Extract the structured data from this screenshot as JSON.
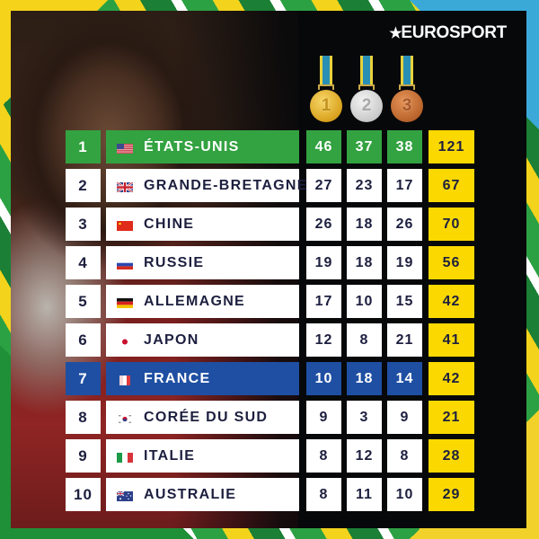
{
  "brand": {
    "logo_text": "EUROSPORT",
    "logo_icon": "star-icon"
  },
  "colors": {
    "leader_highlight": "#33a241",
    "france_highlight": "#1f4fa2",
    "total_column": "#fbd900",
    "text_dark": "#1d1f3f",
    "panel_bg": "#07080a"
  },
  "medals_header": [
    {
      "label": "1",
      "type": "gold"
    },
    {
      "label": "2",
      "type": "silver"
    },
    {
      "label": "3",
      "type": "bronze"
    }
  ],
  "standings": [
    {
      "rank": "1",
      "country": "ÉTATS-UNIS",
      "flag": "usa-flag-icon",
      "gold": "46",
      "silver": "37",
      "bronze": "38",
      "total": "121",
      "highlight": "green"
    },
    {
      "rank": "2",
      "country": "GRANDE-BRETAGNE",
      "flag": "uk-flag-icon",
      "gold": "27",
      "silver": "23",
      "bronze": "17",
      "total": "67",
      "highlight": ""
    },
    {
      "rank": "3",
      "country": "CHINE",
      "flag": "china-flag-icon",
      "gold": "26",
      "silver": "18",
      "bronze": "26",
      "total": "70",
      "highlight": ""
    },
    {
      "rank": "4",
      "country": "RUSSIE",
      "flag": "russia-flag-icon",
      "gold": "19",
      "silver": "18",
      "bronze": "19",
      "total": "56",
      "highlight": ""
    },
    {
      "rank": "5",
      "country": "ALLEMAGNE",
      "flag": "germany-flag-icon",
      "gold": "17",
      "silver": "10",
      "bronze": "15",
      "total": "42",
      "highlight": ""
    },
    {
      "rank": "6",
      "country": "JAPON",
      "flag": "japan-flag-icon",
      "gold": "12",
      "silver": "8",
      "bronze": "21",
      "total": "41",
      "highlight": ""
    },
    {
      "rank": "7",
      "country": "FRANCE",
      "flag": "france-flag-icon",
      "gold": "10",
      "silver": "18",
      "bronze": "14",
      "total": "42",
      "highlight": "blue"
    },
    {
      "rank": "8",
      "country": "CORÉE DU SUD",
      "flag": "south-korea-flag-icon",
      "gold": "9",
      "silver": "3",
      "bronze": "9",
      "total": "21",
      "highlight": ""
    },
    {
      "rank": "9",
      "country": "ITALIE",
      "flag": "italy-flag-icon",
      "gold": "8",
      "silver": "12",
      "bronze": "8",
      "total": "28",
      "highlight": ""
    },
    {
      "rank": "10",
      "country": "AUSTRALIE",
      "flag": "australia-flag-icon",
      "gold": "8",
      "silver": "11",
      "bronze": "10",
      "total": "29",
      "highlight": ""
    }
  ]
}
